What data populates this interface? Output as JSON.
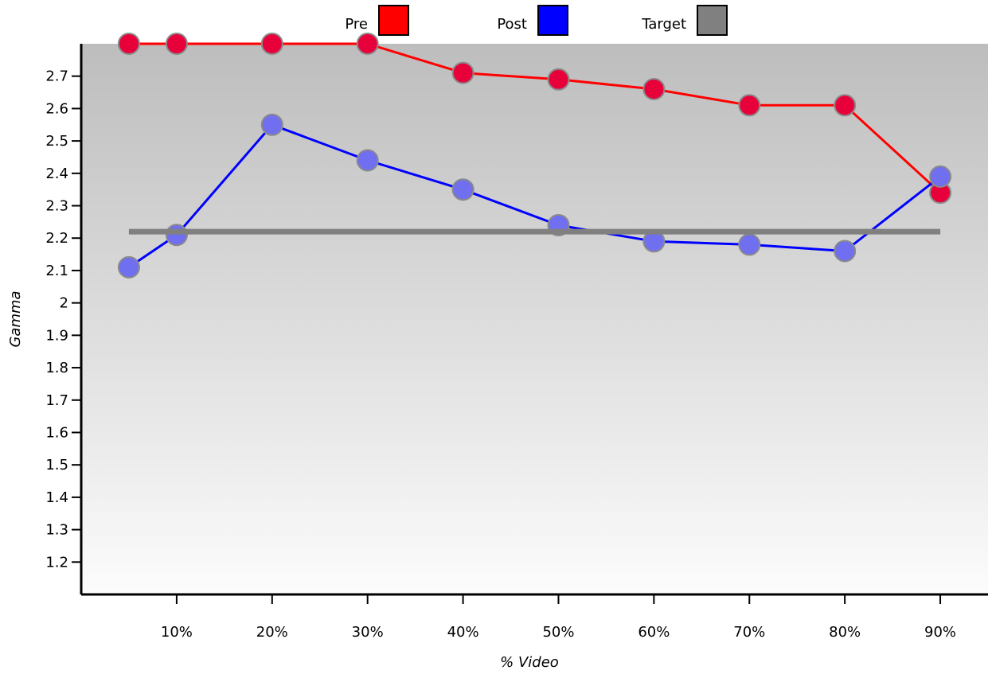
{
  "chart_data": {
    "type": "line",
    "xlabel": "% Video",
    "ylabel": "Gamma",
    "x": [
      5,
      10,
      20,
      30,
      40,
      50,
      60,
      70,
      80,
      90
    ],
    "x_tick_values": [
      10,
      20,
      30,
      40,
      50,
      60,
      70,
      80,
      90
    ],
    "x_tick_labels": [
      "10%",
      "20%",
      "30%",
      "40%",
      "50%",
      "60%",
      "70%",
      "80%",
      "90%"
    ],
    "y_ticks": [
      "1.2",
      "1.3",
      "1.4",
      "1.5",
      "1.6",
      "1.7",
      "1.8",
      "1.9",
      "2",
      "2.1",
      "2.2",
      "2.3",
      "2.4",
      "2.5",
      "2.6",
      "2.7"
    ],
    "ylim": [
      1.1,
      2.8
    ],
    "xlim": [
      0,
      95
    ],
    "grid": false,
    "legend_position": "top",
    "series": [
      {
        "name": "Pre",
        "color": "#ff0000",
        "marker_color": "#e8003a",
        "values": [
          2.8,
          2.8,
          2.8,
          2.8,
          2.71,
          2.69,
          2.66,
          2.61,
          2.61,
          2.34
        ]
      },
      {
        "name": "Post",
        "color": "#0000ff",
        "marker_color": "#6f6ff0",
        "values": [
          2.11,
          2.21,
          2.55,
          2.44,
          2.35,
          2.24,
          2.19,
          2.18,
          2.16,
          2.39
        ]
      },
      {
        "name": "Target",
        "color": "#808080",
        "line_only": true,
        "x": [
          5,
          90
        ],
        "values": [
          2.22,
          2.22
        ]
      }
    ]
  }
}
